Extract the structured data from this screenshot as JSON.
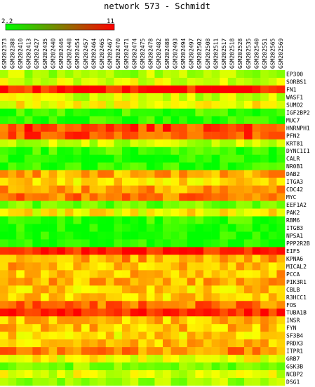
{
  "chart_data": {
    "type": "heatmap",
    "title": "network 573 - Schmidt",
    "colorbar": {
      "min_label": "2.2",
      "max_label": "11",
      "min": 2.2,
      "max": 11,
      "low_color": "#00ff00",
      "high_color": "#ff0000"
    },
    "columns": [
      "GSM202373",
      "GSM202388",
      "GSM202410",
      "GSM202413",
      "GSM202427",
      "GSM202435",
      "GSM202440",
      "GSM202446",
      "GSM202448",
      "GSM202454",
      "GSM202457",
      "GSM202464",
      "GSM202465",
      "GSM202467",
      "GSM202470",
      "GSM202471",
      "GSM202474",
      "GSM202475",
      "GSM202478",
      "GSM202482",
      "GSM202488",
      "GSM202493",
      "GSM202494",
      "GSM202497",
      "GSM202502",
      "GSM202508",
      "GSM202511",
      "GSM202517",
      "GSM202518",
      "GSM202528",
      "GSM202535",
      "GSM202540",
      "GSM202551",
      "GSM202565",
      "GSM202569"
    ],
    "rows": [
      "EP300",
      "SORBS1",
      "FN1",
      "WASF1",
      "SUMO2",
      "IGF2BP2",
      "MUC7",
      "HNRNPH1",
      "PFN2",
      "KRT81",
      "DYNC1I1",
      "CALR",
      "NR0B1",
      "DAB2",
      "ITGA3",
      "CDC42",
      "MYC",
      "EEF1A2",
      "PAK2",
      "RBM6",
      "ITGB3",
      "NPSA1",
      "PPP2R2B",
      "EIF5",
      "KPNA6",
      "MICAL2",
      "PCCA",
      "PIK3R1",
      "CBLB",
      "R3HCC1",
      "FOS",
      "TUBA1B",
      "INSR",
      "FYN",
      "SF3B4",
      "PRDX3",
      "ITPR1",
      "GRB7",
      "GSK3B",
      "NCBP2",
      "DSG1"
    ],
    "row_base": [
      5.2,
      6.0,
      10.6,
      5.8,
      6.6,
      3.2,
      3.0,
      9.8,
      9.6,
      5.4,
      3.2,
      2.6,
      2.8,
      8.0,
      7.0,
      8.2,
      9.0,
      4.0,
      6.6,
      3.0,
      2.5,
      2.5,
      2.6,
      10.6,
      8.2,
      7.8,
      7.8,
      8.0,
      7.4,
      7.4,
      9.0,
      10.6,
      7.6,
      7.6,
      7.2,
      7.6,
      8.6,
      6.4,
      4.4,
      6.0,
      5.0
    ]
  }
}
